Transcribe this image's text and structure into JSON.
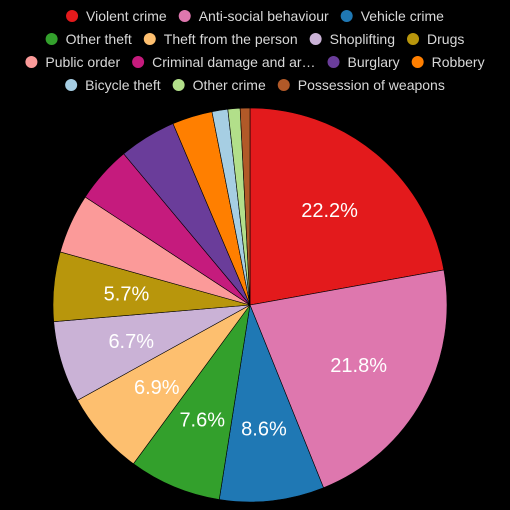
{
  "chart_data": {
    "type": "pie",
    "title": "",
    "legend_position": "top",
    "series": [
      {
        "name": "Violent crime",
        "value": 22.2,
        "color": "#e31a1c",
        "label": "22.2%"
      },
      {
        "name": "Anti-social behaviour",
        "value": 21.8,
        "color": "#de77ae",
        "label": "21.8%"
      },
      {
        "name": "Vehicle crime",
        "value": 8.6,
        "color": "#1f78b4",
        "label": "8.6%"
      },
      {
        "name": "Other theft",
        "value": 7.6,
        "color": "#33a02c",
        "label": "7.6%"
      },
      {
        "name": "Theft from the person",
        "value": 6.9,
        "color": "#fdbf6f",
        "label": "6.9%"
      },
      {
        "name": "Shoplifting",
        "value": 6.7,
        "color": "#cab2d6",
        "label": "6.7%"
      },
      {
        "name": "Drugs",
        "value": 5.7,
        "color": "#b8960c",
        "label": "5.7%"
      },
      {
        "name": "Public order",
        "value": 4.9,
        "color": "#fb9a99",
        "label": ""
      },
      {
        "name": "Criminal damage and ar…",
        "value": 4.7,
        "color": "#c51b7d",
        "label": ""
      },
      {
        "name": "Burglary",
        "value": 4.7,
        "color": "#6a3d9a",
        "label": ""
      },
      {
        "name": "Robbery",
        "value": 3.3,
        "color": "#ff7f00",
        "label": ""
      },
      {
        "name": "Bicycle theft",
        "value": 1.3,
        "color": "#a6cee3",
        "label": ""
      },
      {
        "name": "Other crime",
        "value": 1.0,
        "color": "#b2df8a",
        "label": ""
      },
      {
        "name": "Possession of weapons",
        "value": 0.8,
        "color": "#b15928",
        "label": ""
      }
    ]
  }
}
